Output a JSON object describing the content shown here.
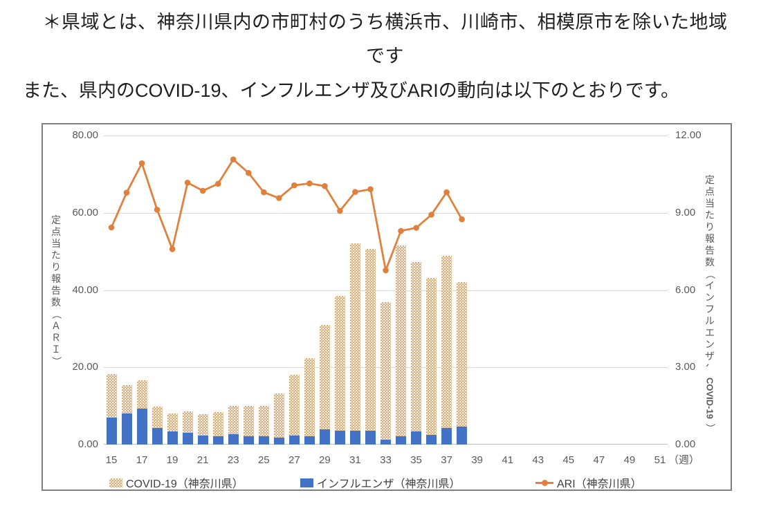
{
  "header": {
    "note_line1": "＊県域とは、神奈川県内の市町村のうち横浜市、川崎市、相模原市を除いた地域",
    "note_line2": "です",
    "intro": "また、県内のCOVID-19、インフルエンザ及びARIの動向は以下のとおりです。"
  },
  "colors": {
    "covid_bar": "#cda773",
    "influenza_bar": "#4472c4",
    "ari_line": "#e0803c",
    "gridline": "#d9d9d9",
    "axis_line": "#bfbfbf",
    "axis_text": "#595959",
    "frame_border": "#7f7f7f"
  },
  "chart_data": {
    "type": "bar+line",
    "x_first": 15,
    "x_last": 51,
    "x_axis_ticks": [
      "15",
      "17",
      "19",
      "21",
      "23",
      "25",
      "27",
      "29",
      "31",
      "33",
      "35",
      "37",
      "39",
      "41",
      "43",
      "45",
      "47",
      "49",
      "51"
    ],
    "x_axis_unit": "（週）",
    "x_weeks": [
      15,
      16,
      17,
      18,
      19,
      20,
      21,
      22,
      23,
      24,
      25,
      26,
      27,
      28,
      29,
      30,
      31,
      32,
      33,
      34,
      35,
      36,
      37,
      38
    ],
    "series": [
      {
        "name": "COVID-19（神奈川県）",
        "type": "bar",
        "stack_level": "top",
        "axis": "right",
        "color": "#cda773",
        "pattern": "white-dot-lattice",
        "values": [
          1.69,
          1.1,
          1.1,
          0.82,
          0.7,
          0.85,
          0.82,
          0.93,
          1.1,
          1.16,
          1.16,
          1.72,
          2.36,
          3.03,
          4.04,
          5.23,
          7.27,
          7.05,
          5.32,
          7.42,
          6.6,
          6.11,
          6.7,
          5.62
        ]
      },
      {
        "name": "インフルエンザ（神奈川県）",
        "type": "bar",
        "stack_level": "bottom",
        "axis": "right",
        "color": "#4472c4",
        "pattern": "solid",
        "values": [
          1.05,
          1.2,
          1.4,
          0.65,
          0.5,
          0.45,
          0.35,
          0.33,
          0.39,
          0.33,
          0.33,
          0.26,
          0.36,
          0.33,
          0.6,
          0.53,
          0.53,
          0.55,
          0.2,
          0.32,
          0.5,
          0.37,
          0.64,
          0.7
        ]
      },
      {
        "name": "ARI（神奈川県）",
        "type": "line",
        "axis": "left",
        "color": "#e0803c",
        "marker": "circle",
        "values": [
          56.2,
          65.2,
          72.8,
          60.8,
          50.6,
          67.8,
          65.7,
          67.5,
          73.8,
          70.3,
          65.3,
          63.8,
          67.1,
          67.6,
          66.9,
          60.5,
          65.4,
          66.1,
          45.1,
          55.3,
          56.1,
          59.5,
          65.3,
          58.3
        ]
      }
    ],
    "left_axis": {
      "title": "定点当たり報告数（ＡＲＩ）",
      "title_parts": [
        {
          "t": "定点当たり報告数（ＡＲＩ）",
          "rot": false
        }
      ],
      "min": 0,
      "max": 80,
      "tick_values": [
        0,
        20,
        40,
        60,
        80
      ],
      "ticks": [
        "0.00",
        "20.00",
        "40.00",
        "60.00",
        "80.00"
      ]
    },
    "right_axis": {
      "title": "定点当たり報告数（インフルエンザ、COVID-19）",
      "title_parts": [
        {
          "t": "定点当たり報告数（インフルエンザ、",
          "rot": false
        },
        {
          "t": "COVID-19",
          "rot": true
        },
        {
          "t": "）",
          "rot": false
        }
      ],
      "min": 0,
      "max": 12,
      "tick_values": [
        0,
        3,
        6,
        9,
        12
      ],
      "ticks": [
        "0.00",
        "3.00",
        "6.00",
        "9.00",
        "12.00"
      ]
    },
    "grid": "horizontal",
    "legend_position": "bottom-inside"
  }
}
